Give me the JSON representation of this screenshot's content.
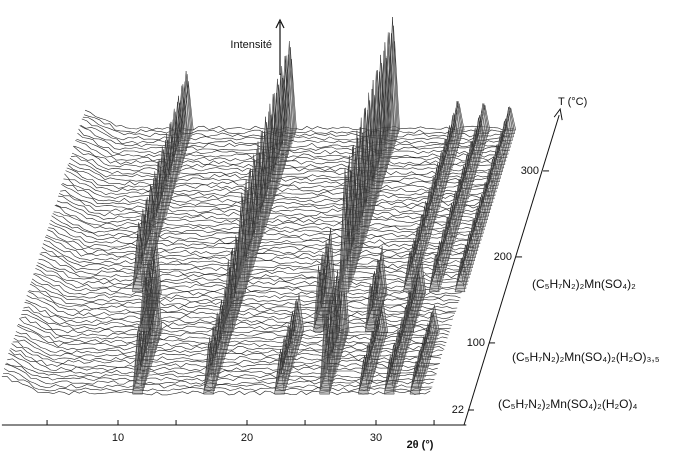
{
  "chart_data": {
    "type": "waterfall",
    "y_label": "Intensité",
    "x_label": "2θ (°)",
    "z_label": "T (°C)",
    "xlim": [
      1,
      37
    ],
    "xticks": [
      10,
      20,
      30
    ],
    "zlim": [
      22,
      330
    ],
    "zticks": [
      22,
      100,
      200,
      300
    ],
    "ylim": [
      0,
      100
    ],
    "series": [
      {
        "name": "(C₅H₇N₂)₂Mn(SO₄)₂(H₂O)₄",
        "color": "#8a8a8a",
        "T": [
          22,
          95
        ],
        "x": [
          11.5,
          17,
          22.5,
          26,
          29,
          31,
          33
        ],
        "values": [
          55,
          45,
          35,
          70,
          30,
          30,
          25
        ]
      },
      {
        "name": "(C₅H₇N₂)₂Mn(SO₄)₂(H₂O)₃,₅",
        "color": "#7a7a7a",
        "T": [
          95,
          140
        ],
        "x": [
          10.5,
          17,
          24,
          28,
          31
        ],
        "values": [
          50,
          60,
          55,
          40,
          35
        ]
      },
      {
        "name": "(C₅H₇N₂)₂Mn(SO₄)₂",
        "color": "#999999",
        "T": [
          140,
          330
        ],
        "x": [
          9,
          17,
          25,
          30,
          32,
          34
        ],
        "values": [
          55,
          80,
          100,
          30,
          28,
          25
        ]
      }
    ]
  }
}
